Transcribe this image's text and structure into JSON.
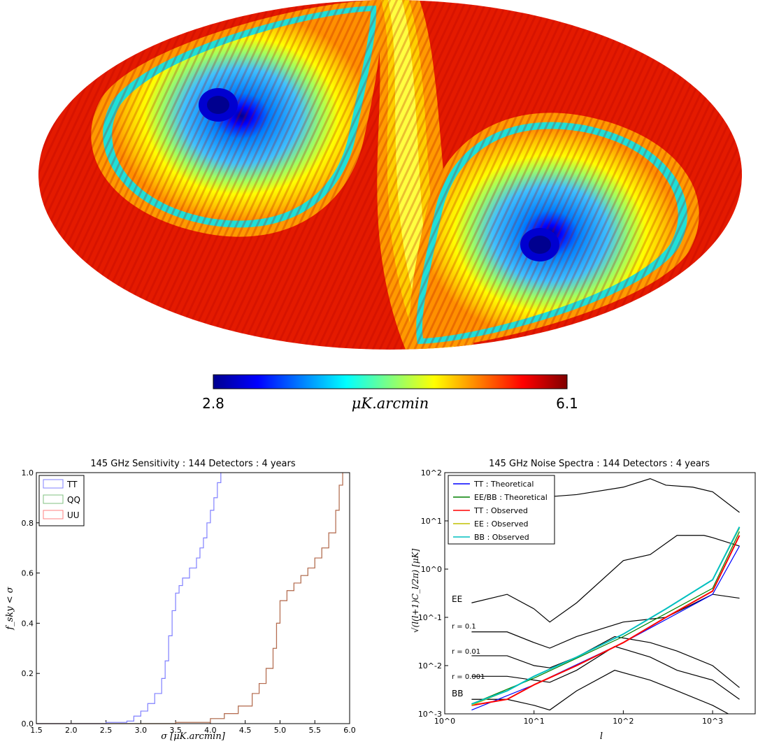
{
  "chart_data": [
    {
      "type": "heatmap",
      "projection": "mollweide",
      "colormap": "jet",
      "colorbar": {
        "min": 2.8,
        "max": 6.1,
        "min_label": "2.8",
        "max_label": "6.1",
        "label": "μK.arcmin"
      },
      "features": [
        {
          "name": "north-minimum",
          "value": 2.8
        },
        {
          "name": "south-minimum",
          "value": 2.8
        }
      ]
    },
    {
      "type": "line",
      "title": "145 GHz Sensitivity : 144 Detectors : 4 years",
      "xlabel": "σ [μK.arcmin]",
      "ylabel": "f_sky < σ",
      "xlim": [
        1.5,
        6.0
      ],
      "ylim": [
        0.0,
        1.0
      ],
      "xticks": [
        "1.5",
        "2.0",
        "2.5",
        "3.0",
        "3.5",
        "4.0",
        "4.5",
        "5.0",
        "5.5",
        "6.0"
      ],
      "yticks": [
        "0.0",
        "0.2",
        "0.4",
        "0.6",
        "0.8",
        "1.0"
      ],
      "legend_position": "top-left",
      "series": [
        {
          "name": "TT",
          "color": "#8080ff",
          "x": [
            2.0,
            2.5,
            2.8,
            2.9,
            3.0,
            3.1,
            3.2,
            3.3,
            3.35,
            3.4,
            3.45,
            3.5,
            3.55,
            3.6,
            3.7,
            3.8,
            3.85,
            3.9,
            3.95,
            4.0,
            4.05,
            4.1,
            4.15
          ],
          "y": [
            0.0,
            0.005,
            0.01,
            0.03,
            0.05,
            0.08,
            0.12,
            0.18,
            0.25,
            0.35,
            0.45,
            0.52,
            0.55,
            0.58,
            0.62,
            0.66,
            0.7,
            0.74,
            0.8,
            0.85,
            0.9,
            0.96,
            1.0
          ]
        },
        {
          "name": "QQ",
          "color": "#80c080",
          "x": [
            3.0,
            3.5,
            4.0,
            4.2,
            4.4,
            4.6,
            4.7,
            4.8,
            4.9,
            4.95,
            5.0,
            5.1,
            5.2,
            5.3,
            5.4,
            5.5,
            5.6,
            5.7,
            5.8,
            5.85,
            5.9
          ],
          "y": [
            0.0,
            0.005,
            0.02,
            0.04,
            0.07,
            0.12,
            0.16,
            0.22,
            0.3,
            0.4,
            0.49,
            0.53,
            0.56,
            0.59,
            0.62,
            0.66,
            0.7,
            0.76,
            0.85,
            0.95,
            1.0
          ]
        },
        {
          "name": "UU",
          "color": "#ff8080",
          "x": [
            3.0,
            3.5,
            4.0,
            4.2,
            4.4,
            4.6,
            4.7,
            4.8,
            4.9,
            4.95,
            5.0,
            5.1,
            5.2,
            5.3,
            5.4,
            5.5,
            5.6,
            5.7,
            5.8,
            5.85,
            5.9
          ],
          "y": [
            0.0,
            0.005,
            0.02,
            0.04,
            0.07,
            0.12,
            0.16,
            0.22,
            0.3,
            0.4,
            0.49,
            0.53,
            0.56,
            0.59,
            0.62,
            0.66,
            0.7,
            0.76,
            0.85,
            0.95,
            1.0
          ]
        }
      ]
    },
    {
      "type": "line",
      "title": "145 GHz Noise Spectra : 144 Detectors : 4 years",
      "xlabel": "l",
      "ylabel": "√(l(l+1)C_l/2π) [μK]",
      "xscale": "log",
      "yscale": "log",
      "xlim": [
        1,
        3000
      ],
      "ylim": [
        0.001,
        100
      ],
      "xticks": [
        "10^0",
        "10^1",
        "10^2",
        "10^3"
      ],
      "yticks": [
        "10^-3",
        "10^-2",
        "10^-1",
        "10^0",
        "10^1",
        "10^2"
      ],
      "legend_position": "top-left",
      "annotations": [
        "EE",
        "r = 0.1",
        "r = 0.01",
        "r = 0.001",
        "BB"
      ],
      "series": [
        {
          "name": "TT : Theoretical",
          "color": "#0000ff",
          "x": [
            2,
            10,
            100,
            1000,
            2000
          ],
          "y": [
            0.0012,
            0.004,
            0.03,
            0.3,
            3.0
          ]
        },
        {
          "name": "EE/BB : Theoretical",
          "color": "#008000",
          "x": [
            2,
            10,
            100,
            1000,
            2000
          ],
          "y": [
            0.0016,
            0.0055,
            0.04,
            0.4,
            6.0
          ]
        },
        {
          "name": "TT : Observed",
          "color": "#ff0000",
          "x": [
            2,
            5,
            10,
            30,
            100,
            300,
            1000,
            2000
          ],
          "y": [
            0.0015,
            0.002,
            0.004,
            0.01,
            0.03,
            0.1,
            0.35,
            5.0
          ]
        },
        {
          "name": "EE : Observed",
          "color": "#c0c000",
          "x": [
            2,
            5,
            10,
            30,
            100,
            300,
            1000,
            2000
          ],
          "y": [
            0.0015,
            0.003,
            0.006,
            0.015,
            0.045,
            0.15,
            0.6,
            7.0
          ]
        },
        {
          "name": "BB : Observed",
          "color": "#00bfbf",
          "x": [
            2,
            5,
            10,
            30,
            100,
            300,
            1000,
            2000
          ],
          "y": [
            0.0016,
            0.003,
            0.006,
            0.015,
            0.045,
            0.15,
            0.6,
            7.5
          ]
        },
        {
          "name": "",
          "color": "#000000",
          "x": [
            2,
            10,
            30,
            100,
            200,
            300,
            600,
            1000,
            2000
          ],
          "y": [
            30,
            30,
            35,
            50,
            75,
            55,
            50,
            40,
            15
          ]
        },
        {
          "name": "",
          "color": "#000000",
          "x": [
            2,
            5,
            10,
            15,
            30,
            100,
            200,
            400,
            800,
            1000,
            2000
          ],
          "y": [
            0.2,
            0.3,
            0.15,
            0.08,
            0.2,
            1.5,
            2.0,
            5.0,
            5.0,
            4.5,
            3.0
          ]
        },
        {
          "name": "",
          "color": "#000000",
          "x": [
            2,
            5,
            10,
            15,
            30,
            100,
            300,
            1000,
            2000
          ],
          "y": [
            0.05,
            0.05,
            0.03,
            0.023,
            0.04,
            0.08,
            0.1,
            0.3,
            0.25
          ]
        },
        {
          "name": "",
          "color": "#000000",
          "x": [
            2,
            5,
            10,
            15,
            30,
            80,
            200,
            400,
            1000,
            2000
          ],
          "y": [
            0.016,
            0.016,
            0.01,
            0.009,
            0.015,
            0.04,
            0.03,
            0.02,
            0.01,
            0.0035
          ]
        },
        {
          "name": "",
          "color": "#000000",
          "x": [
            2,
            5,
            10,
            15,
            30,
            80,
            200,
            400,
            1000,
            2000
          ],
          "y": [
            0.006,
            0.006,
            0.005,
            0.0045,
            0.008,
            0.025,
            0.015,
            0.008,
            0.005,
            0.002
          ]
        },
        {
          "name": "",
          "color": "#000000",
          "x": [
            2,
            5,
            10,
            15,
            30,
            80,
            200,
            400,
            1000,
            1500
          ],
          "y": [
            0.002,
            0.002,
            0.0015,
            0.0012,
            0.003,
            0.008,
            0.005,
            0.003,
            0.0015,
            0.001
          ]
        }
      ]
    }
  ]
}
